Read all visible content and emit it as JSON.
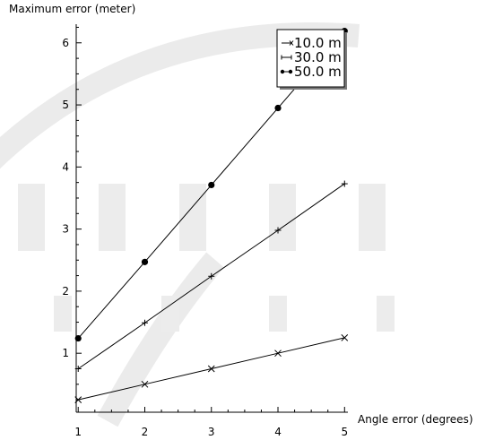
{
  "chart_data": {
    "type": "line",
    "title": "",
    "xlabel": "Angle error (degrees)",
    "ylabel": "Maximum error (meter)",
    "x": [
      1,
      2,
      3,
      4,
      5
    ],
    "x_ticks": [
      "1",
      "2",
      "3",
      "4",
      "5"
    ],
    "y_ticks": [
      "1",
      "2",
      "3",
      "4",
      "5",
      "6"
    ],
    "xlim": [
      0.97,
      5.05
    ],
    "ylim": [
      0.05,
      6.3
    ],
    "grid": false,
    "legend_position": "top-right",
    "series": [
      {
        "name": "10.0 m",
        "marker": "x",
        "values": [
          0.25,
          0.5,
          0.75,
          1.0,
          1.25
        ]
      },
      {
        "name": "30.0 m",
        "marker": "+",
        "values": [
          0.75,
          1.49,
          2.24,
          2.98,
          3.73
        ]
      },
      {
        "name": "50.0 m",
        "marker": "dot",
        "values": [
          1.24,
          2.47,
          3.71,
          4.95,
          6.19
        ]
      }
    ],
    "colors": {
      "line": "#000000",
      "axis": "#000000",
      "watermark": "#e6e6e6"
    }
  }
}
